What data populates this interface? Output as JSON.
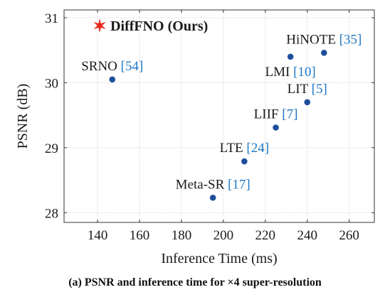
{
  "chart_data": {
    "type": "scatter",
    "xlabel": "Inference Time (ms)",
    "ylabel": "PSNR (dB)",
    "xlim": [
      124,
      272
    ],
    "ylim": [
      27.85,
      31.12
    ],
    "xticks": [
      140,
      160,
      180,
      200,
      220,
      240,
      260
    ],
    "yticks": [
      28,
      29,
      30,
      31
    ],
    "grid": true,
    "point_color": "#1f4e9c",
    "ref_color": "#1f77c4",
    "highlight_color": "#e8291c",
    "points": [
      {
        "name": "SRNO",
        "ref": "54",
        "x": 147,
        "y": 30.05,
        "label_pos": "above"
      },
      {
        "name": "HiNOTE",
        "ref": "35",
        "x": 248,
        "y": 30.46,
        "label_pos": "above"
      },
      {
        "name": "LMI",
        "ref": "10",
        "x": 232,
        "y": 30.4,
        "label_pos": "below"
      },
      {
        "name": "LIT",
        "ref": "5",
        "x": 240,
        "y": 29.7,
        "label_pos": "above"
      },
      {
        "name": "LIIF",
        "ref": "7",
        "x": 225,
        "y": 29.31,
        "label_pos": "above"
      },
      {
        "name": "LTE",
        "ref": "24",
        "x": 210,
        "y": 28.79,
        "label_pos": "above"
      },
      {
        "name": "Meta-SR",
        "ref": "17",
        "x": 195,
        "y": 28.23,
        "label_pos": "above"
      }
    ],
    "highlight": {
      "name": "DiffFNO (Ours)",
      "x": 141,
      "y": 30.88
    }
  },
  "caption": "(a) PSNR and inference time for ×4 super-resolution"
}
